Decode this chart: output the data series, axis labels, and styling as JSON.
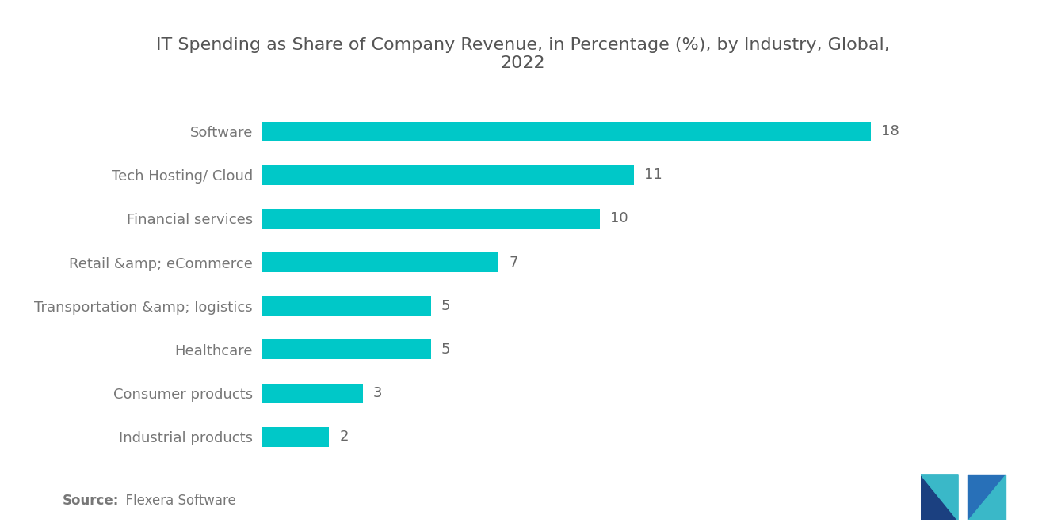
{
  "title": "IT Spending as Share of Company Revenue, in Percentage (%), by Industry, Global,\n2022",
  "categories": [
    "Industrial products",
    "Consumer products",
    "Healthcare",
    "Transportation &amp; logistics",
    "Retail &amp; eCommerce",
    "Financial services",
    "Tech Hosting/ Cloud",
    "Software"
  ],
  "values": [
    2,
    3,
    5,
    5,
    7,
    10,
    11,
    18
  ],
  "bar_color": "#00C8C8",
  "label_color": "#777777",
  "value_color": "#666666",
  "title_color": "#555555",
  "background_color": "#ffffff",
  "source_bold": "Source:",
  "source_normal": "  Flexera Software",
  "xlim": [
    0,
    21
  ],
  "title_fontsize": 16,
  "label_fontsize": 13,
  "value_fontsize": 13,
  "source_fontsize": 12,
  "bar_height": 0.45,
  "logo_dark": "#1b4080",
  "logo_mid": "#2870b8",
  "logo_light": "#3ab8c8"
}
